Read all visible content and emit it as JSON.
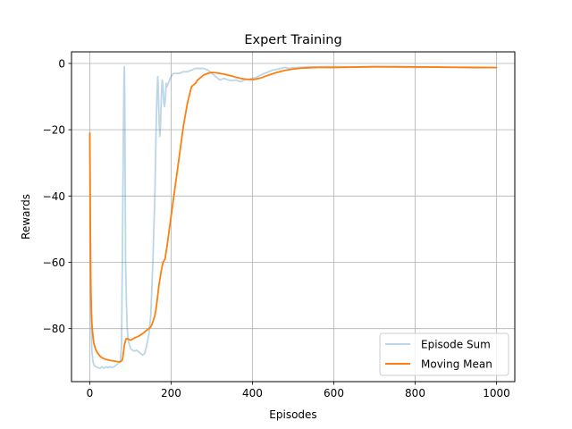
{
  "chart_data": {
    "type": "line",
    "title": "Expert Training",
    "xlabel": "Episodes",
    "ylabel": "Rewards",
    "xlim": [
      -45,
      1045
    ],
    "ylim": [
      -96,
      3.5
    ],
    "xticks": [
      0,
      200,
      400,
      600,
      800,
      1000
    ],
    "yticks": [
      0,
      -20,
      -40,
      -60,
      -80
    ],
    "grid": true,
    "legend_position": "lower right",
    "series": [
      {
        "name": "Episode Sum",
        "color": "#1f77b4",
        "alpha": 0.3,
        "x": [
          0,
          1,
          2,
          3,
          4,
          5,
          6,
          8,
          10,
          15,
          20,
          25,
          30,
          35,
          40,
          45,
          50,
          55,
          60,
          65,
          70,
          75,
          78,
          80,
          82,
          84,
          85,
          86,
          87,
          88,
          90,
          92,
          95,
          98,
          100,
          105,
          110,
          115,
          120,
          125,
          130,
          135,
          140,
          145,
          150,
          155,
          160,
          163,
          165,
          167,
          168,
          170,
          172,
          174,
          176,
          178,
          180,
          182,
          184,
          186,
          188,
          190,
          193,
          196,
          200,
          205,
          210,
          220,
          230,
          240,
          250,
          260,
          270,
          280,
          290,
          300,
          310,
          320,
          330,
          340,
          350,
          360,
          370,
          380,
          390,
          400,
          410,
          420,
          430,
          440,
          450,
          460,
          470,
          480,
          490,
          500,
          520,
          540,
          560,
          580,
          600,
          650,
          700,
          750,
          800,
          850,
          900,
          950,
          1000
        ],
        "y": [
          -21,
          -40,
          -60,
          -75,
          -82,
          -86,
          -88,
          -90,
          -91,
          -91.5,
          -91.8,
          -92,
          -91.5,
          -92,
          -91.5,
          -91.8,
          -91.5,
          -91.7,
          -91.5,
          -91,
          -90.5,
          -90,
          -85,
          -60,
          -30,
          -5,
          -1,
          -10,
          -35,
          -60,
          -72,
          -80,
          -84,
          -85,
          -86,
          -86.5,
          -86.8,
          -86.5,
          -87,
          -87.5,
          -88,
          -87.5,
          -85,
          -82,
          -76,
          -60,
          -40,
          -20,
          -10,
          -4,
          -6,
          -15,
          -22,
          -18,
          -10,
          -5,
          -7,
          -12,
          -13,
          -10,
          -6,
          -7,
          -6,
          -5,
          -4,
          -3,
          -3,
          -3,
          -2.5,
          -2.5,
          -2,
          -1.5,
          -1.5,
          -1.5,
          -2,
          -3,
          -4,
          -5,
          -4.5,
          -5,
          -5.2,
          -5,
          -5.5,
          -5,
          -4.8,
          -4.5,
          -4.2,
          -3.5,
          -3,
          -2.5,
          -2,
          -1.8,
          -1.5,
          -1.2,
          -1.5,
          -1.3,
          -1.2,
          -1.0,
          -1.1,
          -1.0,
          -1.0,
          -1.1,
          -1.0,
          -1.1,
          -1.2,
          -1.1,
          -1.2,
          -1.3,
          -1.2
        ]
      },
      {
        "name": "Moving Mean",
        "color": "#ff7f0e",
        "alpha": 1.0,
        "x": [
          0,
          1,
          2,
          3,
          4,
          5,
          6,
          8,
          10,
          15,
          20,
          25,
          30,
          40,
          50,
          60,
          70,
          75,
          80,
          83,
          85,
          88,
          90,
          95,
          100,
          105,
          110,
          120,
          130,
          140,
          150,
          155,
          160,
          163,
          165,
          168,
          170,
          175,
          180,
          185,
          190,
          200,
          210,
          220,
          230,
          240,
          250,
          255,
          260,
          265,
          270,
          280,
          290,
          300,
          310,
          320,
          330,
          340,
          350,
          360,
          370,
          380,
          390,
          400,
          410,
          420,
          440,
          460,
          480,
          500,
          520,
          540,
          560,
          580,
          600,
          650,
          700,
          750,
          800,
          850,
          900,
          950,
          1000
        ],
        "y": [
          -21,
          -45,
          -62,
          -70,
          -75,
          -78,
          -80,
          -82.5,
          -84.5,
          -86.5,
          -87.5,
          -88.3,
          -88.8,
          -89.3,
          -89.6,
          -89.8,
          -90,
          -90,
          -89.5,
          -87,
          -85,
          -83.5,
          -83,
          -83.2,
          -83.5,
          -83.2,
          -82.8,
          -82.3,
          -81.5,
          -80.5,
          -79.5,
          -78,
          -76,
          -74,
          -72,
          -69,
          -67,
          -63,
          -60,
          -59,
          -55,
          -46,
          -37,
          -28,
          -19,
          -12,
          -7,
          -6.5,
          -6,
          -5,
          -4.5,
          -3.5,
          -3,
          -2.7,
          -2.8,
          -3,
          -3.2,
          -3.5,
          -3.8,
          -4.2,
          -4.5,
          -4.7,
          -4.8,
          -4.9,
          -4.7,
          -4.4,
          -3.5,
          -2.7,
          -2.1,
          -1.7,
          -1.4,
          -1.3,
          -1.2,
          -1.2,
          -1.2,
          -1.1,
          -1.0,
          -1.0,
          -1.05,
          -1.1,
          -1.15,
          -1.2,
          -1.25
        ]
      }
    ]
  }
}
